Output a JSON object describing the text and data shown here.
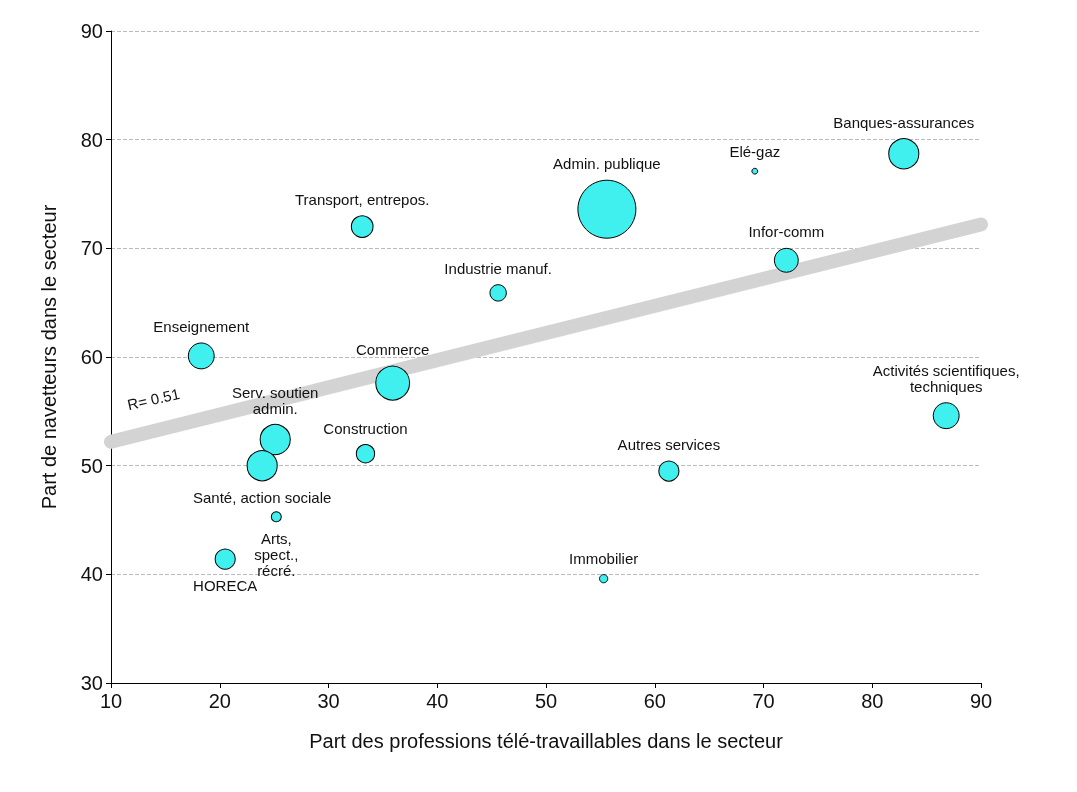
{
  "chart_data": {
    "type": "bubble",
    "xlabel": "Part des professions télé-travaillables dans le secteur",
    "ylabel": "Part de navetteurs dans le secteur",
    "xlim": [
      10,
      90
    ],
    "xticks": [
      10,
      20,
      30,
      40,
      50,
      60,
      70,
      80,
      90
    ],
    "ylim": [
      30,
      90
    ],
    "yticks": [
      30,
      40,
      50,
      60,
      70,
      80,
      90
    ],
    "grid": "y",
    "legend": false,
    "annotations": [
      "R= 0.51"
    ],
    "series": [
      {
        "name": "Enseignement",
        "color": "#3ff0ee",
        "x": [
          18.3
        ],
        "values": [
          60.1
        ],
        "sizes": [
          0.2
        ]
      },
      {
        "name": "Transport, entrepos.",
        "color": "#3ff0ee",
        "x": [
          33.1
        ],
        "values": [
          72.0
        ],
        "sizes": [
          0.14
        ]
      },
      {
        "name": "Admin. publique",
        "color": "#3ff0ee",
        "x": [
          55.6
        ],
        "values": [
          73.6
        ],
        "sizes": [
          1
        ]
      },
      {
        "name": "Elé-gaz",
        "color": "#3ff0ee",
        "x": [
          69.2
        ],
        "values": [
          77.1
        ],
        "sizes": [
          0.01
        ]
      },
      {
        "name": "Banques-assurances",
        "color": "#3ff0ee",
        "x": [
          82.9
        ],
        "values": [
          78.7
        ],
        "sizes": [
          0.27
        ]
      },
      {
        "name": "Infor-comm",
        "color": "#3ff0ee",
        "x": [
          72.1
        ],
        "values": [
          68.9
        ],
        "sizes": [
          0.17
        ]
      },
      {
        "name": "Industrie manuf.",
        "color": "#3ff0ee",
        "x": [
          45.6
        ],
        "values": [
          65.9
        ],
        "sizes": [
          0.08
        ]
      },
      {
        "name": "Commerce",
        "color": "#3ff0ee",
        "x": [
          35.9
        ],
        "values": [
          57.6
        ],
        "sizes": [
          0.34
        ]
      },
      {
        "name": "Serv. soutien\nadmin.",
        "color": "#3ff0ee",
        "x": [
          25.1
        ],
        "values": [
          52.4
        ],
        "sizes": [
          0.27
        ]
      },
      {
        "name": "Construction",
        "color": "#3ff0ee",
        "x": [
          33.4
        ],
        "values": [
          51.1
        ],
        "sizes": [
          0.1
        ]
      },
      {
        "name": "Santé, action sociale",
        "color": "#3ff0ee",
        "x": [
          23.9
        ],
        "values": [
          50.0
        ],
        "sizes": [
          0.27
        ]
      },
      {
        "name": "Arts,\nspect.,\nrécré.",
        "color": "#3ff0ee",
        "x": [
          25.2
        ],
        "values": [
          45.3
        ],
        "sizes": [
          0.03
        ]
      },
      {
        "name": "HORECA",
        "color": "#3ff0ee",
        "x": [
          20.5
        ],
        "values": [
          41.4
        ],
        "sizes": [
          0.12
        ]
      },
      {
        "name": "Immobilier",
        "color": "#3ff0ee",
        "x": [
          55.3
        ],
        "values": [
          39.6
        ],
        "sizes": [
          0.02
        ]
      },
      {
        "name": "Autres services",
        "color": "#3ff0ee",
        "x": [
          61.3
        ],
        "values": [
          49.5
        ],
        "sizes": [
          0.12
        ]
      },
      {
        "name": "Activités scientifiques,\ntechniques",
        "color": "#3ff0ee",
        "x": [
          86.8
        ],
        "values": [
          54.6
        ],
        "sizes": [
          0.2
        ]
      },
      {
        "type": "line",
        "color": "#d3d3d3",
        "x": [
          10,
          90
        ],
        "values": [
          52.2,
          72.2
        ]
      }
    ]
  }
}
